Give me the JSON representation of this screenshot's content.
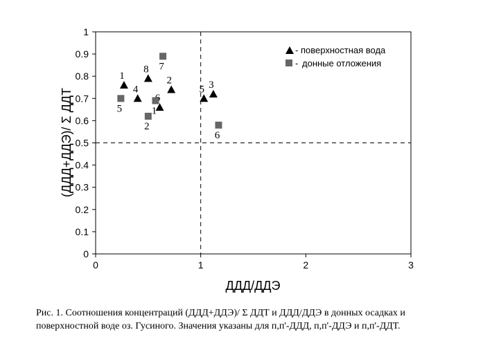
{
  "chart_data": {
    "type": "scatter",
    "xlabel": "ДДД/ДДЭ",
    "ylabel": "(ДДД+ДДЭ)/ Σ ДДТ",
    "xlim": [
      0,
      3
    ],
    "ylim": [
      0,
      1
    ],
    "x_ticks": [
      "0",
      "1",
      "2",
      "3"
    ],
    "y_ticks": [
      "0",
      "0.1",
      "0.2",
      "0.3",
      "0.4",
      "0.5",
      "0.6",
      "0.7",
      "0.8",
      "0.9",
      "1"
    ],
    "reference_lines": {
      "x": 1,
      "y": 0.5
    },
    "legend_position": "top-right",
    "series": [
      {
        "name": "поверхностная вода",
        "marker": "triangle",
        "color": "#000000",
        "points": [
          {
            "label": "1",
            "x": 0.27,
            "y": 0.76
          },
          {
            "label": "2",
            "x": 0.72,
            "y": 0.74
          },
          {
            "label": "3",
            "x": 1.12,
            "y": 0.72
          },
          {
            "label": "4",
            "x": 0.4,
            "y": 0.7
          },
          {
            "label": "5",
            "x": 1.03,
            "y": 0.7
          },
          {
            "label": "6",
            "x": 0.61,
            "y": 0.66
          },
          {
            "label": "8",
            "x": 0.5,
            "y": 0.79
          }
        ]
      },
      {
        "name": "донные отложения",
        "marker": "square",
        "color": "#666666",
        "points": [
          {
            "label": "1",
            "x": 0.57,
            "y": 0.69
          },
          {
            "label": "2",
            "x": 0.5,
            "y": 0.62
          },
          {
            "label": "5",
            "x": 0.24,
            "y": 0.7
          },
          {
            "label": "6",
            "x": 1.17,
            "y": 0.58
          },
          {
            "label": "7",
            "x": 0.64,
            "y": 0.89
          }
        ]
      }
    ]
  },
  "legend": {
    "items": [
      {
        "prefix": "-",
        "text": "поверхностная вода"
      },
      {
        "prefix": "- ",
        "text": "донные отложения"
      }
    ]
  },
  "caption": {
    "line1": "Рис. 1. Соотношения концентраций (ДДД+ДДЭ)/ Σ ДДТ и ДДД/ДДЭ в донных осадках и",
    "line2": "поверхностной воде оз. Гусиного. Значения указаны для п,п'-ДДД, п,п'-ДДЭ и п,п'-ДДТ."
  }
}
